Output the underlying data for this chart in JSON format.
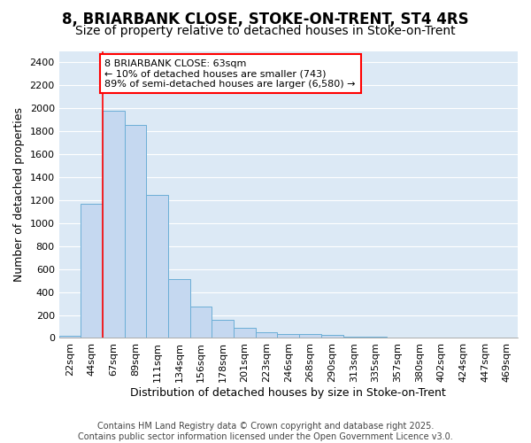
{
  "title1": "8, BRIARBANK CLOSE, STOKE-ON-TRENT, ST4 4RS",
  "title2": "Size of property relative to detached houses in Stoke-on-Trent",
  "xlabel": "Distribution of detached houses by size in Stoke-on-Trent",
  "ylabel": "Number of detached properties",
  "categories": [
    "22sqm",
    "44sqm",
    "67sqm",
    "89sqm",
    "111sqm",
    "134sqm",
    "156sqm",
    "178sqm",
    "201sqm",
    "223sqm",
    "246sqm",
    "268sqm",
    "290sqm",
    "313sqm",
    "335sqm",
    "357sqm",
    "380sqm",
    "402sqm",
    "424sqm",
    "447sqm",
    "469sqm"
  ],
  "values": [
    22,
    1170,
    1980,
    1855,
    1245,
    515,
    275,
    155,
    90,
    50,
    35,
    32,
    25,
    14,
    8,
    5,
    4,
    3,
    2,
    2,
    2
  ],
  "bar_color": "#c5d8f0",
  "bar_edge_color": "#6baed6",
  "vline_color": "red",
  "vline_x": 1.5,
  "annotation_text": "8 BRIARBANK CLOSE: 63sqm\n← 10% of detached houses are smaller (743)\n89% of semi-detached houses are larger (6,580) →",
  "annotation_box_color": "white",
  "annotation_box_edge_color": "red",
  "ylim": [
    0,
    2500
  ],
  "yticks": [
    0,
    200,
    400,
    600,
    800,
    1000,
    1200,
    1400,
    1600,
    1800,
    2000,
    2200,
    2400
  ],
  "footer": "Contains HM Land Registry data © Crown copyright and database right 2025.\nContains public sector information licensed under the Open Government Licence v3.0.",
  "fig_bg_color": "#ffffff",
  "plot_bg_color": "#dce9f5",
  "grid_color": "#ffffff",
  "title1_fontsize": 12,
  "title2_fontsize": 10,
  "axis_label_fontsize": 9,
  "tick_fontsize": 8,
  "footer_fontsize": 7,
  "annotation_fontsize": 8
}
